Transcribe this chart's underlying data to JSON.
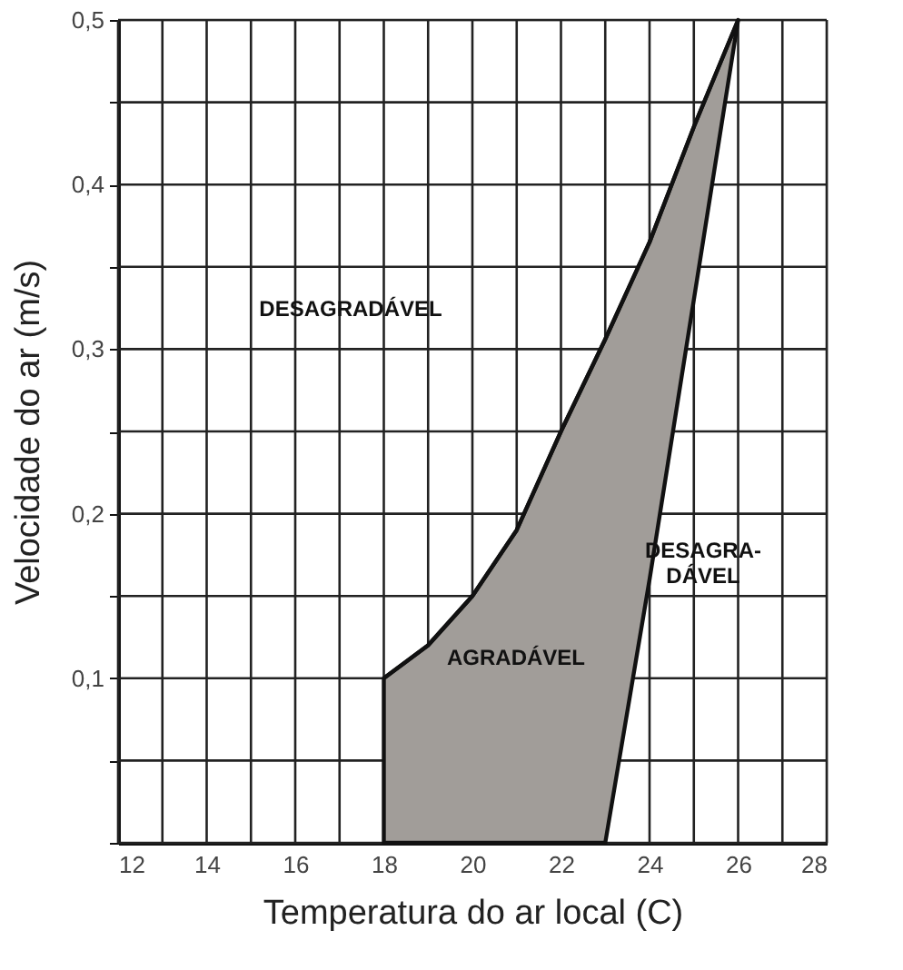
{
  "chart_data": {
    "type": "line",
    "line_style": "solid",
    "marker": "none",
    "xlabel": "Temperatura do ar local (C)",
    "ylabel": "Velocidade do ar (m/s)",
    "xlim": [
      12,
      28
    ],
    "ylim": [
      0,
      0.5
    ],
    "xticks": [
      12,
      {
        "value": 13,
        "label": null
      },
      14,
      {
        "value": 15,
        "label": null
      },
      16,
      {
        "value": 17,
        "label": null
      },
      18,
      {
        "value": 19,
        "label": null
      },
      20,
      {
        "value": 21,
        "label": null
      },
      22,
      {
        "value": 23,
        "label": null
      },
      24,
      {
        "value": 25,
        "label": null
      },
      26,
      {
        "value": 27,
        "label": null
      },
      28
    ],
    "yticks": [
      {
        "value": 0,
        "label": null
      },
      {
        "value": 0.05,
        "label": null
      },
      {
        "value": 0.1,
        "label": "0,1"
      },
      {
        "value": 0.15,
        "label": null
      },
      {
        "value": 0.2,
        "label": "0,2"
      },
      {
        "value": 0.25,
        "label": null
      },
      {
        "value": 0.3,
        "label": "0,3"
      },
      {
        "value": 0.35,
        "label": null
      },
      {
        "value": 0.4,
        "label": "0,4"
      },
      {
        "value": 0.45,
        "label": null
      },
      {
        "value": 0.5,
        "label": "0,5"
      }
    ],
    "grid": true,
    "series": [
      {
        "color": "#111111",
        "x": [
          18,
          19,
          20,
          21,
          22,
          23,
          24,
          25,
          26
        ],
        "values": [
          0.1,
          0.12,
          0.15,
          0.19,
          0.25,
          0.306,
          0.365,
          0.435,
          0.5
        ],
        "lower": [
          0,
          0,
          0,
          0,
          0,
          0,
          0.16,
          0.33,
          0.5
        ],
        "upper": [
          0.1,
          0.12,
          0.15,
          0.19,
          0.25,
          0.306,
          0.365,
          0.435,
          0.5
        ]
      }
    ],
    "annotations": [
      "DESAGRADÁVEL",
      "AGRADÁVEL",
      "DESAGRA-\nDÁVEL"
    ]
  }
}
